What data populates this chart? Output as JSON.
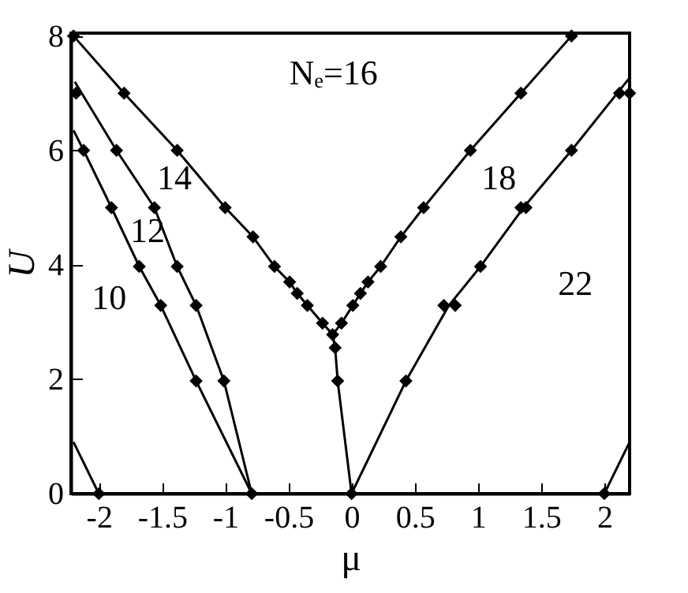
{
  "chart_data": {
    "type": "line",
    "xlabel": "μ",
    "ylabel": "U",
    "xlim": [
      -2.22,
      2.2
    ],
    "ylim": [
      0,
      8.05
    ],
    "xticks": [
      -2,
      -1.5,
      -1,
      -0.5,
      0,
      0.5,
      1,
      1.5,
      2
    ],
    "yticks": [
      0,
      2,
      4,
      6,
      8
    ],
    "grid": false,
    "series": [
      {
        "color": "#000000",
        "marker": "none",
        "x": [
          -2.2,
          -2.12,
          -1.9,
          -1.68,
          -1.51,
          -1.23,
          -0.79
        ],
        "values": [
          6.35,
          6.0,
          5.0,
          3.97,
          3.29,
          1.97,
          0
        ]
      },
      {
        "color": "#000000",
        "marker": "none",
        "x": [
          -2.19,
          -1.86,
          -1.56,
          -1.38,
          -1.23,
          -1.01,
          -0.79
        ],
        "values": [
          7.2,
          6.0,
          5.0,
          3.97,
          3.29,
          1.97,
          0
        ]
      },
      {
        "color": "#000000",
        "marker": "none",
        "x": [
          -2.2,
          -1.8,
          -1.38,
          -1.0,
          -0.78,
          -0.61,
          -0.49,
          -0.43,
          -0.35,
          -0.23,
          -0.15,
          -0.13,
          -0.11,
          0
        ],
        "values": [
          8.0,
          7.0,
          6.0,
          5.0,
          4.49,
          3.97,
          3.7,
          3.5,
          3.29,
          2.98,
          2.78,
          2.55,
          1.97,
          0
        ]
      },
      {
        "color": "#000000",
        "marker": "none",
        "x": [
          -0.15,
          -0.08,
          0.01,
          0.07,
          0.13,
          0.23,
          0.39,
          0.57,
          0.94,
          1.34,
          1.74
        ],
        "values": [
          2.78,
          2.98,
          3.29,
          3.5,
          3.7,
          3.97,
          4.49,
          5.0,
          6.0,
          7.0,
          8.0
        ]
      },
      {
        "color": "#000000",
        "marker": "none",
        "x": [
          0,
          0.43,
          0.77,
          1.02,
          1.36,
          1.74,
          2.2
        ],
        "values": [
          0,
          1.97,
          3.29,
          3.97,
          5.0,
          6.0,
          7.27
        ]
      },
      {
        "color": "#000000",
        "marker": "none",
        "x": [
          -2.2,
          -2.0
        ],
        "values": [
          0.9,
          0
        ]
      },
      {
        "color": "#000000",
        "marker": "none",
        "x": [
          2.0,
          2.2
        ],
        "values": [
          0,
          0.9
        ]
      },
      {
        "type": "scatter",
        "color": "#000000",
        "marker": "diamond",
        "x": [
          -2.2,
          -1.8,
          -1.38,
          -1.0,
          -0.78,
          -0.61,
          -0.49,
          -0.43,
          -0.35,
          -0.23,
          -0.15,
          -0.13,
          -0.11,
          -2.18,
          -1.86,
          -1.56,
          -1.38,
          -1.23,
          -1.01,
          -2.12,
          -1.9,
          -1.68,
          -1.51,
          -1.23,
          -0.79,
          -2.0,
          0,
          -0.08,
          0.01,
          0.07,
          0.13,
          0.23,
          0.39,
          0.57,
          0.94,
          1.34,
          1.74,
          0.43,
          0.73,
          0.82,
          1.02,
          1.34,
          1.38,
          1.74,
          2.12,
          2.2,
          2.0
        ],
        "values": [
          8.0,
          7.0,
          6.0,
          5.0,
          4.49,
          3.97,
          3.7,
          3.5,
          3.29,
          2.98,
          2.78,
          2.55,
          1.97,
          7.0,
          6.0,
          5.0,
          3.97,
          3.29,
          1.97,
          6.0,
          5.0,
          3.97,
          3.29,
          1.97,
          0,
          0,
          0,
          2.98,
          3.29,
          3.5,
          3.7,
          3.97,
          4.49,
          5.0,
          6.0,
          7.0,
          8.0,
          1.97,
          3.29,
          3.29,
          3.97,
          5.0,
          5.0,
          6.0,
          7.0,
          7.0,
          0
        ]
      }
    ],
    "annotations": [
      "Nₑ=16",
      "14",
      "12",
      "10",
      "18",
      "22"
    ]
  }
}
